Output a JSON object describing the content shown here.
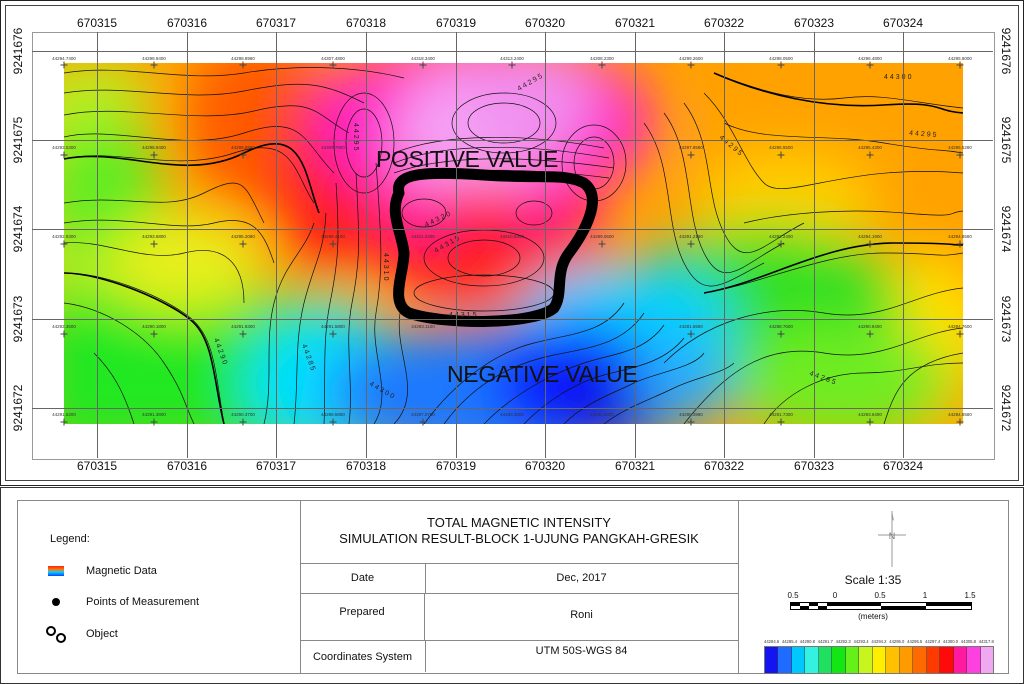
{
  "map": {
    "x_ticks": [
      "670315",
      "670316",
      "670317",
      "670318",
      "670319",
      "670320",
      "670321",
      "670322",
      "670323",
      "670324"
    ],
    "y_ticks": [
      "9241676",
      "9241675",
      "9241674",
      "9241673",
      "9241672"
    ],
    "zone_labels": {
      "positive": "POSITIVE VALUE",
      "negative": "NEGATIVE VALUE"
    },
    "contour_labels": [
      "44300",
      "44295",
      "44295",
      "44295",
      "44295",
      "44320",
      "44315",
      "44310",
      "44315",
      "44290",
      "44285",
      "44300",
      "44300",
      "44285"
    ],
    "stations": {
      "row_1": [
        "44294.7400",
        "44298.9400",
        "44298.8980",
        "44307.4800",
        "44318.3400",
        "44313.2400",
        "44308.2300",
        "44299.2600",
        "44298.0500",
        "44296.4800",
        "44295.8000"
      ],
      "row_2": [
        "44293.5300",
        "44298.9400",
        "44298.8980",
        "44309.7800",
        "44315.6200",
        "44316.8900",
        "44310.1500",
        "44297.8580",
        "44296.5500",
        "44295.4300",
        "44295.5280"
      ],
      "row_3": [
        "44292.9300",
        "44293.6800",
        "44295.2080",
        "44298.4100",
        "44311.2200",
        "44310.6300",
        "44289.0600",
        "44291.2180",
        "44292.2400",
        "44294.1900",
        "44294.8580"
      ],
      "row_4": [
        "44292.3600",
        "44290.1800",
        "44291.8300",
        "44291.5800",
        "44283.1100",
        "44281.7200",
        "44280.9400",
        "44281.6580",
        "44288.7600",
        "44290.8400",
        "44294.7600"
      ],
      "row_5": [
        "44291.5200",
        "44291.3800",
        "44290.3700",
        "44289.5800",
        "44287.0700",
        "44283.3800",
        "44282.5000",
        "44285.3980",
        "44291.7300",
        "44293.6400",
        "44294.8580"
      ]
    },
    "colors": {
      "pink": "#f5a0f5",
      "magenta": "#ff1ccc",
      "red": "#ff1a1a",
      "orange": "#ff8c00",
      "yellow": "#ffee00",
      "green": "#2ee52e",
      "cyan": "#00e5ff",
      "blue": "#0a1aff",
      "object_outline": "#000000"
    }
  },
  "title_block": {
    "legend": {
      "title": "Legend:",
      "items": [
        {
          "icon": "magnetic-data-swatch-icon",
          "label": "Magnetic Data"
        },
        {
          "icon": "measurement-point-icon",
          "label": "Points of Measurement"
        },
        {
          "icon": "object-icon",
          "label": "Object"
        }
      ]
    },
    "title_line_1": "TOTAL MAGNETIC INTENSITY",
    "title_line_2": "SIMULATION RESULT-BLOCK 1-UJUNG PANGKAH-GRESIK",
    "rows": [
      {
        "key": "Date",
        "value": "Dec, 2017"
      },
      {
        "key": "Prepared",
        "value": "Roni"
      },
      {
        "key": "Coordinates System",
        "value": "UTM 50S-WGS 84"
      }
    ],
    "north_arrow": "N",
    "scale": {
      "text": "Scale 1:35",
      "labels": [
        "0.5",
        "0",
        "0.5",
        "1",
        "1.5"
      ],
      "unit": "(meters)"
    },
    "colorbar": {
      "labels": [
        "44284.6",
        "44285.4",
        "44290.8",
        "44291.7",
        "44292.3",
        "44293.4",
        "44294.2",
        "44295.0",
        "44295.5",
        "44297.4",
        "44300.0",
        "44305.8",
        "44317.8"
      ],
      "colors": [
        "#1414f0",
        "#1e6cff",
        "#00c8ff",
        "#33f2e0",
        "#20e060",
        "#14e614",
        "#66f01a",
        "#c8f51e",
        "#ffee00",
        "#ffc000",
        "#ff9a00",
        "#ff6a00",
        "#ff3a00",
        "#ff0a0a",
        "#ff1aa0",
        "#ff40e0",
        "#f0a8f0"
      ]
    }
  }
}
